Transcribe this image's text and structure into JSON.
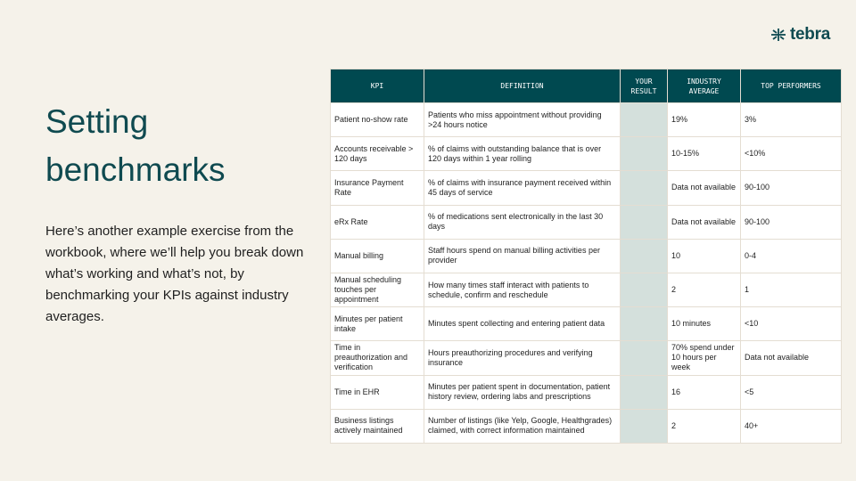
{
  "logo": {
    "text": "tebra"
  },
  "title_lines": [
    "Setting",
    "benchmarks"
  ],
  "description": "Here’s another example exercise from the workbook, where we’ll help you break down what’s working and what’s not, by benchmarking your KPIs against industry averages.",
  "table": {
    "headers": [
      "KPI",
      "DEFINITION",
      "YOUR RESULT",
      "INDUSTRY AVERAGE",
      "TOP PERFORMERS"
    ],
    "rows": [
      [
        "Patient no-show rate",
        "Patients who miss appointment without providing >24 hours notice",
        "",
        "19%",
        "3%"
      ],
      [
        "Accounts receivable > 120 days",
        "% of claims with outstanding balance that is over 120 days within 1 year rolling",
        "",
        "10-15%",
        "<10%"
      ],
      [
        "Insurance Payment Rate",
        "% of claims with insurance payment received within 45 days of service",
        "",
        "Data not available",
        "90-100"
      ],
      [
        "eRx Rate",
        "% of medications sent electronically in the last 30 days",
        "",
        "Data not available",
        "90-100"
      ],
      [
        "Manual billing",
        "Staff hours spend on manual billing activities per provider",
        "",
        "10",
        "0-4"
      ],
      [
        "Manual scheduling touches per appointment",
        "How many times staff interact with patients to schedule, confirm and reschedule",
        "",
        "2",
        "1"
      ],
      [
        "Minutes per patient intake",
        "Minutes spent collecting and entering patient data",
        "",
        "10 minutes",
        "<10"
      ],
      [
        "Time in preauthorization and verification",
        "Hours preauthorizing procedures and verifying insurance",
        "",
        "70% spend under 10 hours per week",
        "Data not available"
      ],
      [
        "Time in EHR",
        "Minutes per patient spent in documentation, patient history review, ordering labs and prescriptions",
        "",
        "16",
        "<5"
      ],
      [
        "Business listings actively maintained",
        "Number of listings (like Yelp, Google, Healthgrades) claimed, with correct information maintained",
        "",
        "2",
        "40+"
      ]
    ]
  },
  "colors": {
    "header_bg": "#004950",
    "brand": "#0f4a50",
    "result_bg": "#d4e0dc",
    "page_bg": "#f5f2ea"
  }
}
